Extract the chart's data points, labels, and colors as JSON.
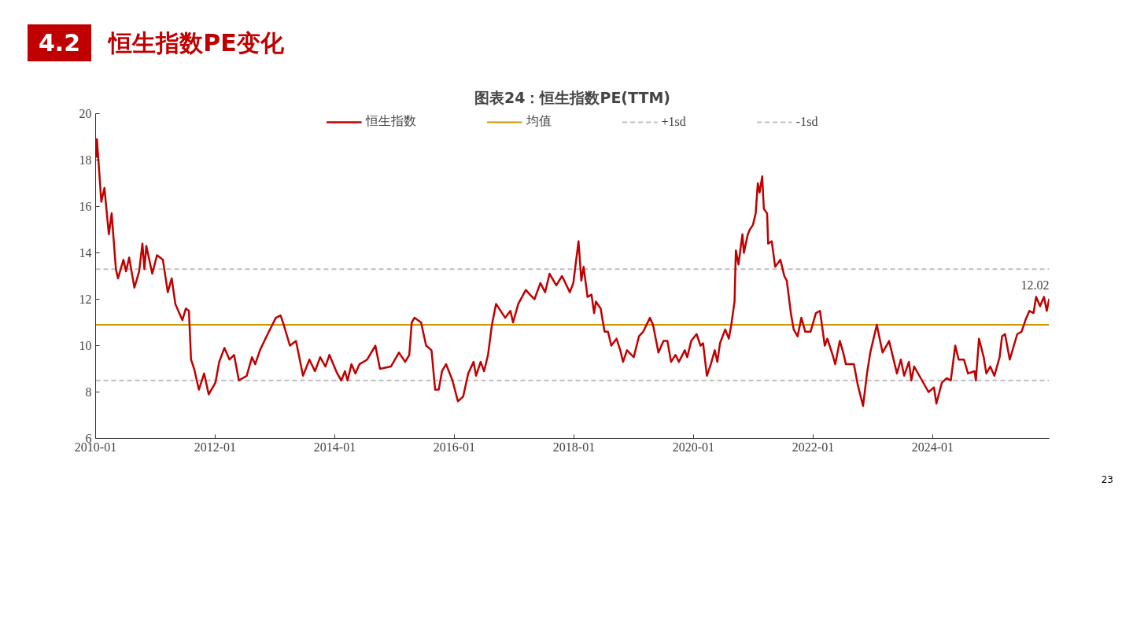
{
  "chart_data": {
    "type": "line",
    "title": "图表24：恒生指数PE(TTM)",
    "annotations": [
      "4.2",
      "恒生指数PE变化",
      "23",
      {
        "text": "12.02",
        "x": "2025-12-13",
        "y": 12.02
      }
    ],
    "xlim": [
      "2010-01-01",
      "2025-12-13"
    ],
    "xticks": [
      "2010-01",
      "2012-01",
      "2014-01",
      "2016-01",
      "2018-01",
      "2020-01",
      "2022-01",
      "2024-01"
    ],
    "ylim": [
      6,
      20
    ],
    "yticks": [
      6,
      8,
      10,
      12,
      14,
      16,
      18,
      20
    ],
    "grid": false,
    "legend": "top",
    "series": [
      {
        "name": "恒生指数",
        "color": "#c00000",
        "line_style": "solid",
        "x": [
          "2010-01-04",
          "2010-01-09",
          "2010-02-05",
          "2010-02-24",
          "2010-03-12",
          "2010-03-23",
          "2010-04-09",
          "2010-05-05",
          "2010-05-18",
          "2010-06-20",
          "2010-07-06",
          "2010-07-25",
          "2010-08-26",
          "2010-09-24",
          "2010-10-14",
          "2010-10-26",
          "2010-11-07",
          "2010-12-13",
          "2011-01-11",
          "2011-02-16",
          "2011-03-18",
          "2011-04-11",
          "2011-05-03",
          "2011-06-15",
          "2011-07-06",
          "2011-07-25",
          "2011-08-07",
          "2011-08-26",
          "2011-09-24",
          "2011-10-26",
          "2011-11-23",
          "2012-01-03",
          "2012-01-26",
          "2012-02-27",
          "2012-03-29",
          "2012-04-26",
          "2012-05-25",
          "2012-07-12",
          "2012-08-13",
          "2012-09-02",
          "2012-10-01",
          "2012-11-10",
          "2013-01-06",
          "2013-02-04",
          "2013-02-23",
          "2013-04-02",
          "2013-05-09",
          "2013-06-21",
          "2013-07-30",
          "2013-09-02",
          "2013-10-04",
          "2013-11-05",
          "2013-11-29",
          "2014-01-16",
          "2014-02-10",
          "2014-03-04",
          "2014-03-20",
          "2014-04-13",
          "2014-05-07",
          "2014-06-01",
          "2014-07-18",
          "2014-09-06",
          "2014-10-04",
          "2014-12-10",
          "2015-01-28",
          "2015-03-07",
          "2015-04-01",
          "2015-04-16",
          "2015-05-03",
          "2015-06-12",
          "2015-07-13",
          "2015-08-15",
          "2015-09-06",
          "2015-09-28",
          "2015-10-18",
          "2015-11-12",
          "2015-12-21",
          "2016-01-23",
          "2016-02-24",
          "2016-03-26",
          "2016-04-28",
          "2016-05-13",
          "2016-06-10",
          "2016-07-01",
          "2016-07-25",
          "2016-08-18",
          "2016-09-12",
          "2016-11-07",
          "2016-12-09",
          "2016-12-25",
          "2017-01-26",
          "2017-03-13",
          "2017-04-07",
          "2017-05-05",
          "2017-06-10",
          "2017-07-09",
          "2017-08-05",
          "2017-09-15",
          "2017-10-20",
          "2017-12-07",
          "2017-12-28",
          "2018-01-29",
          "2018-02-15",
          "2018-03-01",
          "2018-03-25",
          "2018-04-18",
          "2018-05-04",
          "2018-05-15",
          "2018-06-13",
          "2018-07-07",
          "2018-07-28",
          "2018-08-17",
          "2018-09-18",
          "2018-10-11",
          "2018-10-28",
          "2018-11-21",
          "2019-01-01",
          "2019-02-02",
          "2019-02-28",
          "2019-04-10",
          "2019-04-29",
          "2019-06-01",
          "2019-07-02",
          "2019-07-26",
          "2019-08-17",
          "2019-09-13",
          "2019-10-04",
          "2019-11-09",
          "2019-11-24",
          "2019-12-18",
          "2020-01-20",
          "2020-02-13",
          "2020-02-29",
          "2020-03-23",
          "2020-04-16",
          "2020-05-10",
          "2020-05-26",
          "2020-06-11",
          "2020-07-13",
          "2020-08-04",
          "2020-08-19",
          "2020-09-08",
          "2020-09-16",
          "2020-10-02",
          "2020-10-26",
          "2020-11-04",
          "2020-11-28",
          "2020-12-10",
          "2020-12-29",
          "2021-01-15",
          "2021-01-28",
          "2021-02-08",
          "2021-02-24",
          "2021-03-06",
          "2021-03-26",
          "2021-04-01",
          "2021-04-23",
          "2021-05-14",
          "2021-06-15",
          "2021-07-09",
          "2021-07-24",
          "2021-08-18",
          "2021-09-04",
          "2021-09-28",
          "2021-10-21",
          "2021-11-14",
          "2021-12-16",
          "2022-01-18",
          "2022-02-12",
          "2022-03-13",
          "2022-03-29",
          "2022-04-30",
          "2022-05-16",
          "2022-06-13",
          "2022-07-04",
          "2022-07-20",
          "2022-09-07",
          "2022-10-01",
          "2022-11-02",
          "2022-11-26",
          "2022-12-16",
          "2023-01-25",
          "2023-03-01",
          "2023-04-10",
          "2023-05-28",
          "2023-06-21",
          "2023-07-11",
          "2023-08-09",
          "2023-08-24",
          "2023-09-10",
          "2023-10-28",
          "2023-12-07",
          "2024-01-09",
          "2024-01-24",
          "2024-02-26",
          "2024-03-27",
          "2024-04-21",
          "2024-05-18",
          "2024-06-08",
          "2024-07-10",
          "2024-08-04",
          "2024-09-13",
          "2024-09-21",
          "2024-10-10",
          "2024-11-08",
          "2024-11-24",
          "2024-12-18",
          "2025-01-12",
          "2025-02-13",
          "2025-02-28",
          "2025-03-18",
          "2025-04-16",
          "2025-06-01",
          "2025-06-27",
          "2025-07-21",
          "2025-08-14",
          "2025-09-08",
          "2025-09-24",
          "2025-10-18",
          "2025-11-11",
          "2025-11-28",
          "2025-12-13"
        ],
        "values": [
          18.1,
          18.9,
          16.2,
          16.8,
          15.6,
          14.8,
          15.7,
          13.3,
          12.9,
          13.7,
          13.2,
          13.8,
          12.5,
          13.2,
          14.4,
          13.3,
          14.3,
          13.1,
          13.9,
          13.7,
          12.3,
          12.9,
          11.8,
          11.1,
          11.6,
          11.5,
          9.4,
          9.0,
          8.1,
          8.8,
          7.9,
          8.4,
          9.3,
          9.9,
          9.4,
          9.6,
          8.5,
          8.7,
          9.5,
          9.2,
          9.8,
          10.4,
          11.2,
          11.3,
          10.9,
          10.0,
          10.2,
          8.7,
          9.4,
          8.9,
          9.5,
          9.1,
          9.6,
          8.8,
          8.5,
          8.9,
          8.5,
          9.2,
          8.8,
          9.2,
          9.4,
          10.0,
          9.0,
          9.1,
          9.7,
          9.3,
          9.6,
          11.0,
          11.2,
          11.0,
          10.0,
          9.8,
          8.1,
          8.1,
          8.9,
          9.2,
          8.5,
          7.6,
          7.8,
          8.8,
          9.3,
          8.7,
          9.3,
          8.9,
          9.6,
          10.9,
          11.8,
          11.2,
          11.5,
          11.0,
          11.8,
          12.4,
          12.2,
          12.0,
          12.7,
          12.3,
          13.1,
          12.6,
          13.0,
          12.3,
          12.7,
          14.5,
          12.8,
          13.4,
          12.1,
          12.2,
          11.4,
          11.9,
          11.6,
          10.6,
          10.6,
          10.0,
          10.3,
          9.8,
          9.3,
          9.8,
          9.5,
          10.4,
          10.6,
          11.2,
          10.9,
          9.7,
          10.2,
          10.2,
          9.3,
          9.6,
          9.3,
          9.8,
          9.5,
          10.2,
          10.5,
          10.0,
          10.1,
          8.7,
          9.2,
          9.8,
          9.3,
          10.1,
          10.7,
          10.3,
          10.9,
          11.9,
          14.1,
          13.5,
          14.8,
          14.0,
          14.8,
          15.0,
          15.2,
          15.7,
          17.0,
          16.6,
          17.3,
          15.9,
          15.7,
          14.4,
          14.5,
          13.4,
          13.7,
          13.0,
          12.8,
          11.4,
          10.7,
          10.4,
          11.2,
          10.6,
          10.6,
          11.4,
          11.5,
          10.0,
          10.3,
          9.6,
          9.2,
          10.2,
          9.7,
          9.2,
          9.2,
          8.3,
          7.4,
          8.8,
          9.7,
          10.9,
          9.7,
          10.2,
          8.8,
          9.4,
          8.7,
          9.3,
          8.5,
          9.1,
          8.5,
          8.0,
          8.2,
          7.5,
          8.4,
          8.6,
          8.5,
          10.0,
          9.4,
          9.4,
          8.8,
          8.9,
          8.5,
          10.3,
          9.5,
          8.8,
          9.1,
          8.7,
          9.5,
          10.4,
          10.5,
          9.4,
          10.5,
          10.6,
          11.1,
          11.5,
          11.4,
          12.1,
          11.7,
          12.1,
          11.5,
          12.02
        ]
      },
      {
        "name": "均值",
        "color": "#cc9900",
        "line_style": "solid",
        "x": [
          "2010-01-01",
          "2025-12-13"
        ],
        "values": [
          10.9,
          10.9
        ]
      },
      {
        "name": "+1sd",
        "color": "#bfbfbf",
        "line_style": "dashed",
        "x": [
          "2010-01-01",
          "2025-12-13"
        ],
        "values": [
          13.3,
          13.3
        ]
      },
      {
        "name": "-1sd",
        "color": "#bfbfbf",
        "line_style": "dashed",
        "x": [
          "2010-01-01",
          "2025-12-13"
        ],
        "values": [
          8.5,
          8.5
        ]
      }
    ]
  }
}
